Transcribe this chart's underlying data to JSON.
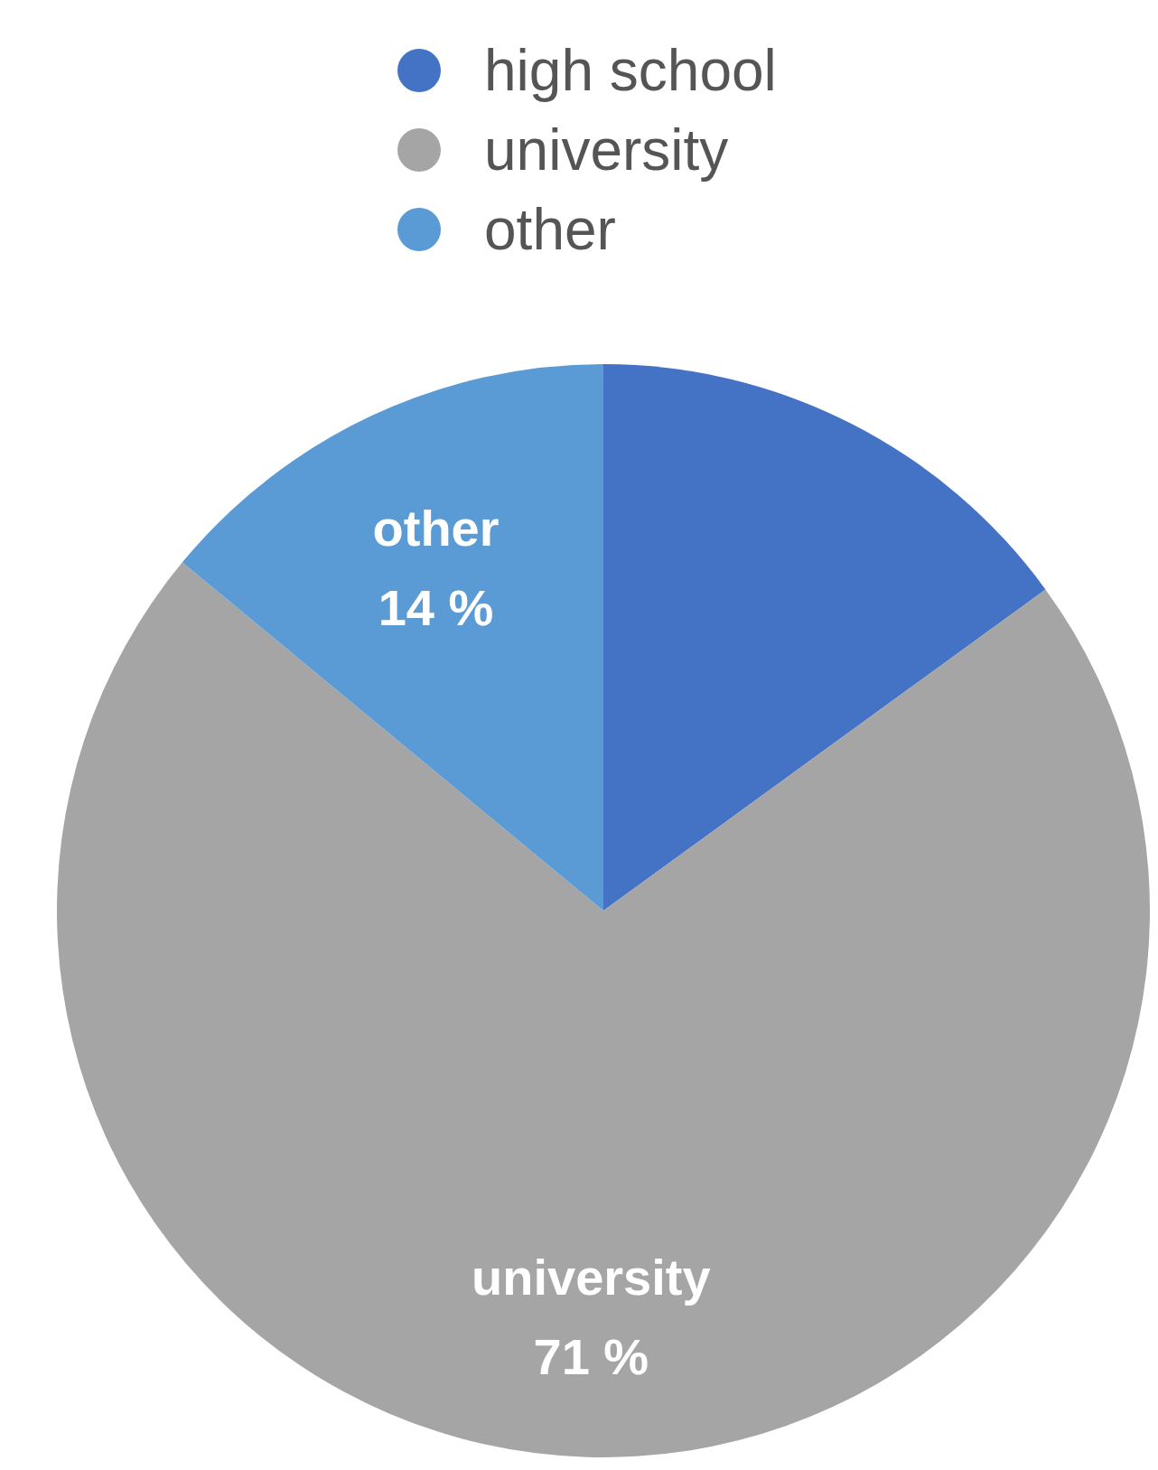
{
  "chart_data": {
    "type": "pie",
    "categories": [
      "high school",
      "university",
      "other"
    ],
    "values": [
      15,
      71,
      14
    ],
    "colors": [
      "#4472c4",
      "#a5a5a5",
      "#5b9bd5"
    ],
    "value_labels": [
      null,
      "71 %",
      "14 %"
    ],
    "legend": "top"
  }
}
